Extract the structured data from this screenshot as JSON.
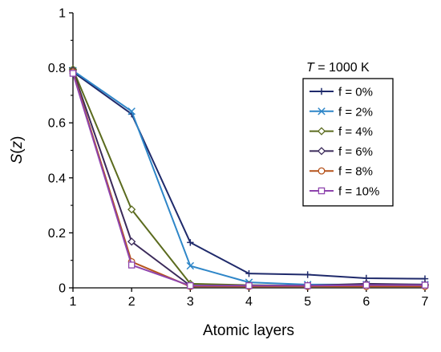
{
  "chart_data": {
    "type": "line",
    "xlabel": "Atomic layers",
    "ylabel": {
      "main": "S",
      "open": "(",
      "var": "z",
      "close": ")"
    },
    "xlim": [
      1,
      7
    ],
    "ylim": [
      0,
      1
    ],
    "x": [
      1,
      2,
      3,
      4,
      5,
      6,
      7
    ],
    "x_ticks": [
      "1",
      "2",
      "3",
      "4",
      "5",
      "6",
      "7"
    ],
    "y_ticks": [
      {
        "value": 0,
        "label": "0"
      },
      {
        "value": 0.2,
        "label": "0.2"
      },
      {
        "value": 0.4,
        "label": "0.4"
      },
      {
        "value": 0.6,
        "label": "0.6"
      },
      {
        "value": 0.8,
        "label": "0.8"
      },
      {
        "value": 1,
        "label": "1"
      }
    ],
    "grid": false,
    "legend_position": "right",
    "legend_title": {
      "var": "T",
      "rest": " = 1000 K"
    },
    "series": [
      {
        "name": "f = 0%",
        "color": "#1f2a6b",
        "marker": "plus",
        "values": [
          0.785,
          0.632,
          0.165,
          0.052,
          0.048,
          0.035,
          0.033
        ]
      },
      {
        "name": "f = 2%",
        "color": "#2e86c8",
        "marker": "x",
        "values": [
          0.79,
          0.642,
          0.08,
          0.02,
          0.012,
          0.012,
          0.012
        ]
      },
      {
        "name": "f = 4%",
        "color": "#5b6b1e",
        "marker": "diamond",
        "values": [
          0.795,
          0.285,
          0.015,
          0.01,
          0.008,
          0.008,
          0.008
        ]
      },
      {
        "name": "f = 6%",
        "color": "#3b2a5a",
        "marker": "diamond",
        "values": [
          0.79,
          0.168,
          0.008,
          0.008,
          0.008,
          0.015,
          0.012
        ]
      },
      {
        "name": "f = 8%",
        "color": "#b5531c",
        "marker": "circle",
        "values": [
          0.785,
          0.095,
          0.005,
          0.005,
          0.005,
          0.005,
          0.005
        ]
      },
      {
        "name": "f = 10%",
        "color": "#8e44ad",
        "marker": "square",
        "values": [
          0.78,
          0.083,
          0.008,
          0.008,
          0.008,
          0.01,
          0.01
        ]
      }
    ]
  }
}
